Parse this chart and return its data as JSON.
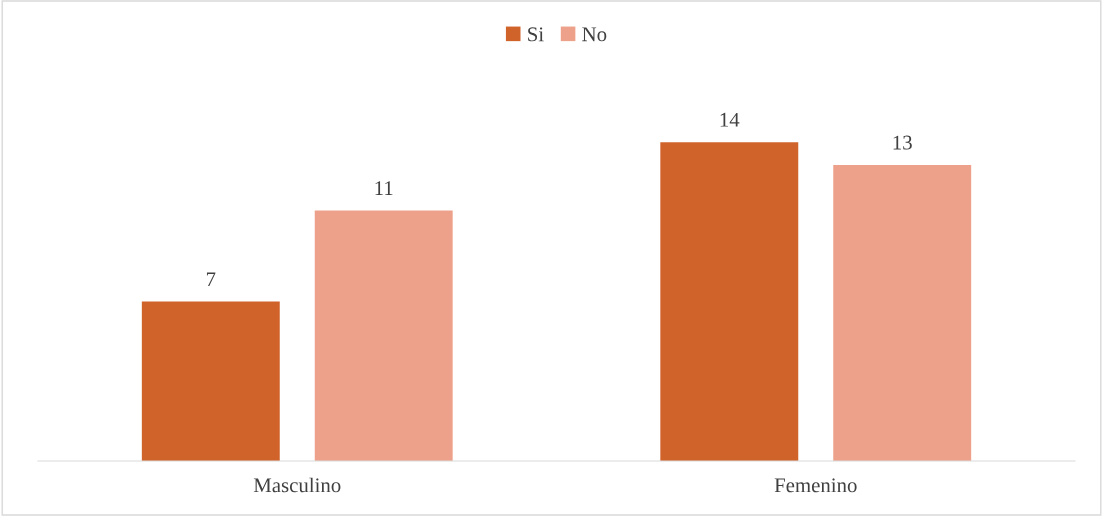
{
  "chart_data": {
    "type": "bar",
    "categories": [
      "Masculino",
      "Femenino"
    ],
    "series": [
      {
        "name": "Si",
        "color": "#d0632a",
        "values": [
          7,
          14
        ]
      },
      {
        "name": "No",
        "color": "#eea18a",
        "values": [
          11,
          13
        ]
      }
    ],
    "data_labels": true,
    "legend": "top"
  }
}
